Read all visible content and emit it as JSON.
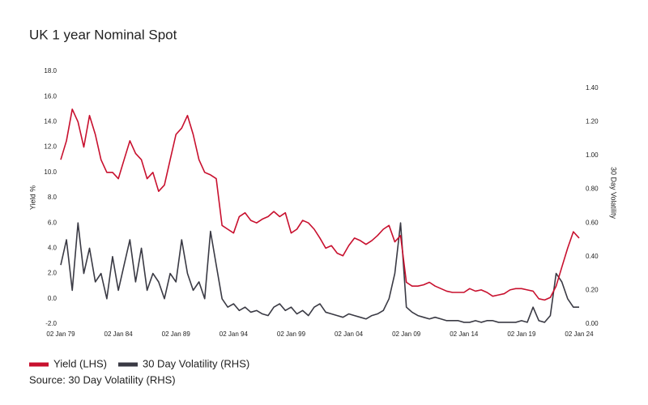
{
  "chart_data": {
    "type": "line",
    "title": "UK 1 year Nominal Spot",
    "y_label": "Yield %",
    "y2_label": "30 Day Volatility",
    "source": "Source: 30 Day Volatility (RHS)",
    "x": [
      "1979-01-02",
      "1979-07-02",
      "1980-01-02",
      "1980-07-02",
      "1981-01-02",
      "1981-07-02",
      "1982-01-02",
      "1982-07-02",
      "1983-01-02",
      "1983-07-02",
      "1984-01-02",
      "1984-07-02",
      "1985-01-02",
      "1985-07-02",
      "1986-01-02",
      "1986-07-02",
      "1987-01-02",
      "1987-07-02",
      "1988-01-02",
      "1988-07-02",
      "1989-01-02",
      "1989-07-02",
      "1990-01-02",
      "1990-07-02",
      "1991-01-02",
      "1991-07-02",
      "1992-01-02",
      "1992-07-02",
      "1993-01-02",
      "1993-07-02",
      "1994-01-02",
      "1994-07-02",
      "1995-01-02",
      "1995-07-02",
      "1996-01-02",
      "1996-07-02",
      "1997-01-02",
      "1997-07-02",
      "1998-01-02",
      "1998-07-02",
      "1999-01-02",
      "1999-07-02",
      "2000-01-02",
      "2000-07-02",
      "2001-01-02",
      "2001-07-02",
      "2002-01-02",
      "2002-07-02",
      "2003-01-02",
      "2003-07-02",
      "2004-01-02",
      "2004-07-02",
      "2005-01-02",
      "2005-07-02",
      "2006-01-02",
      "2006-07-02",
      "2007-01-02",
      "2007-07-02",
      "2008-01-02",
      "2008-07-02",
      "2009-01-02",
      "2009-07-02",
      "2010-01-02",
      "2010-07-02",
      "2011-01-02",
      "2011-07-02",
      "2012-01-02",
      "2012-07-02",
      "2013-01-02",
      "2013-07-02",
      "2014-01-02",
      "2014-07-02",
      "2015-01-02",
      "2015-07-02",
      "2016-01-02",
      "2016-07-02",
      "2017-01-02",
      "2017-07-02",
      "2018-01-02",
      "2018-07-02",
      "2019-01-02",
      "2019-07-02",
      "2020-01-02",
      "2020-07-02",
      "2021-01-02",
      "2021-07-02",
      "2022-01-02",
      "2022-07-02",
      "2023-01-02",
      "2023-07-02",
      "2024-01-02"
    ],
    "series": [
      {
        "name": "Yield (LHS)",
        "color": "#c8102e",
        "axis": "y",
        "values": [
          11,
          12.5,
          15,
          14,
          12,
          14.5,
          13,
          11,
          10,
          10,
          9.5,
          11,
          12.5,
          11.5,
          11,
          9.5,
          10,
          8.5,
          9,
          11,
          13,
          13.5,
          14.5,
          13,
          11,
          10,
          9.8,
          9.5,
          5.8,
          5.5,
          5.2,
          6.5,
          6.8,
          6.2,
          6.0,
          6.3,
          6.5,
          6.9,
          6.5,
          6.8,
          5.2,
          5.5,
          6.2,
          6.0,
          5.5,
          4.8,
          4.0,
          4.2,
          3.6,
          3.4,
          4.2,
          4.8,
          4.6,
          4.3,
          4.6,
          5.0,
          5.5,
          5.8,
          4.5,
          5.0,
          1.3,
          1.0,
          1.0,
          1.1,
          1.3,
          1.0,
          0.8,
          0.6,
          0.5,
          0.5,
          0.5,
          0.8,
          0.6,
          0.7,
          0.5,
          0.2,
          0.3,
          0.4,
          0.7,
          0.8,
          0.8,
          0.7,
          0.6,
          0.0,
          -0.1,
          0.1,
          1.0,
          2.5,
          4.0,
          5.3,
          4.8
        ]
      },
      {
        "name": "30 Day Volatility (RHS)",
        "color": "#3a3a44",
        "axis": "y2",
        "values": [
          0.35,
          0.5,
          0.2,
          0.6,
          0.3,
          0.45,
          0.25,
          0.3,
          0.15,
          0.4,
          0.2,
          0.35,
          0.5,
          0.25,
          0.45,
          0.2,
          0.3,
          0.25,
          0.15,
          0.3,
          0.25,
          0.5,
          0.3,
          0.2,
          0.25,
          0.15,
          0.55,
          0.35,
          0.15,
          0.1,
          0.12,
          0.08,
          0.1,
          0.07,
          0.08,
          0.06,
          0.05,
          0.1,
          0.12,
          0.08,
          0.1,
          0.06,
          0.08,
          0.05,
          0.1,
          0.12,
          0.07,
          0.06,
          0.05,
          0.04,
          0.06,
          0.05,
          0.04,
          0.03,
          0.05,
          0.06,
          0.08,
          0.15,
          0.3,
          0.6,
          0.1,
          0.07,
          0.05,
          0.04,
          0.03,
          0.04,
          0.03,
          0.02,
          0.02,
          0.02,
          0.01,
          0.01,
          0.02,
          0.01,
          0.02,
          0.02,
          0.01,
          0.01,
          0.01,
          0.01,
          0.02,
          0.01,
          0.1,
          0.02,
          0.01,
          0.05,
          0.3,
          0.25,
          0.15,
          0.1,
          0.1
        ]
      }
    ],
    "xlim": [
      "1979-01-02",
      "2024-01-02"
    ],
    "xticks": [
      {
        "value": "1979-01-02",
        "label": "02 Jan 79"
      },
      {
        "value": "1984-01-02",
        "label": "02 Jan 84"
      },
      {
        "value": "1989-01-02",
        "label": "02 Jan 89"
      },
      {
        "value": "1994-01-02",
        "label": "02 Jan 94"
      },
      {
        "value": "1999-01-02",
        "label": "02 Jan 99"
      },
      {
        "value": "2004-01-02",
        "label": "02 Jan 04"
      },
      {
        "value": "2009-01-02",
        "label": "02 Jan 09"
      },
      {
        "value": "2014-01-02",
        "label": "02 Jan 14"
      },
      {
        "value": "2019-01-02",
        "label": "02 Jan 19"
      },
      {
        "value": "2024-01-02",
        "label": "02 Jan 24"
      }
    ],
    "ylim": [
      -2,
      18
    ],
    "yticks": [
      {
        "value": -2,
        "label": "-2.0"
      },
      {
        "value": 0,
        "label": "0.0"
      },
      {
        "value": 2,
        "label": "2.0"
      },
      {
        "value": 4,
        "label": "4.0"
      },
      {
        "value": 6,
        "label": "6.0"
      },
      {
        "value": 8,
        "label": "8.0"
      },
      {
        "value": 10,
        "label": "10.0"
      },
      {
        "value": 12,
        "label": "12.0"
      },
      {
        "value": 14,
        "label": "14.0"
      },
      {
        "value": 16,
        "label": "16.0"
      },
      {
        "value": 18,
        "label": "18.0"
      }
    ],
    "y2lim": [
      0,
      1.5
    ],
    "y2ticks": [
      {
        "value": 0,
        "label": "0.00"
      },
      {
        "value": 0.2,
        "label": "0.20"
      },
      {
        "value": 0.4,
        "label": "0.40"
      },
      {
        "value": 0.6,
        "label": "0.60"
      },
      {
        "value": 0.8,
        "label": "0.80"
      },
      {
        "value": 1.0,
        "label": "1.00"
      },
      {
        "value": 1.2,
        "label": "1.20"
      },
      {
        "value": 1.4,
        "label": "1.40"
      }
    ],
    "grid": false
  }
}
